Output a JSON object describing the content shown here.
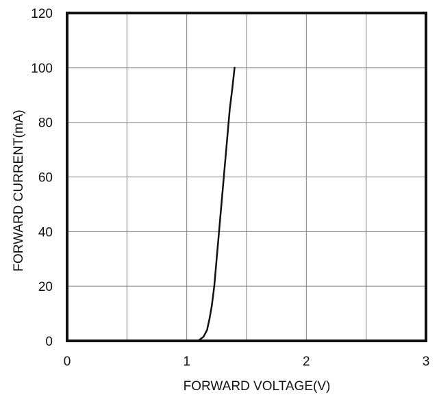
{
  "chart_data": {
    "type": "line",
    "xlabel": "FORWARD VOLTAGE(V)",
    "ylabel": "FORWARD CURRENT(mA)",
    "xlim": [
      0,
      3
    ],
    "ylim": [
      0,
      120
    ],
    "x_ticks": [
      0,
      1,
      2,
      3
    ],
    "x_tick_labels": [
      "0",
      "1",
      "2",
      "3"
    ],
    "y_ticks": [
      0,
      20,
      40,
      60,
      80,
      100,
      120
    ],
    "y_tick_labels": [
      "0",
      "20",
      "40",
      "60",
      "80",
      "100",
      "120"
    ],
    "x_grid": [
      0.5,
      1,
      1.5,
      2,
      2.5
    ],
    "y_grid": [
      20,
      40,
      60,
      80,
      100
    ],
    "grid": true,
    "legend": "none",
    "line_color": "#111111",
    "series": [
      {
        "x": [
          1.05,
          1.1,
          1.14,
          1.17,
          1.19,
          1.21,
          1.23,
          1.25,
          1.27,
          1.29,
          1.31,
          1.33,
          1.35,
          1.36,
          1.38,
          1.4
        ],
        "y": [
          0,
          0.2,
          1.5,
          4,
          8,
          13,
          20,
          30,
          40,
          50,
          60,
          70,
          80,
          85,
          92,
          100
        ]
      }
    ]
  }
}
